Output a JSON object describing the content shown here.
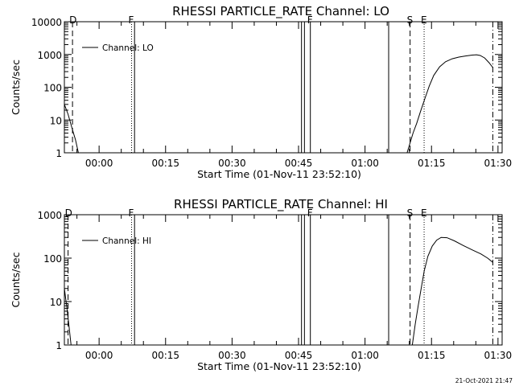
{
  "timestamp": "21-Oct-2021 21:47",
  "chart_data": [
    {
      "type": "line",
      "title": "RHESSI PARTICLE_RATE Channel: LO",
      "xlabel": "Start Time (01-Nov-11 23:52:10)",
      "ylabel": "Counts/sec",
      "y_scale": "log",
      "ylim": [
        1,
        10000
      ],
      "xlim": [
        "23:52:10",
        "01:30:56"
      ],
      "y_ticks": [
        "1",
        "10",
        "100",
        "1000",
        "10000"
      ],
      "x_ticks": [
        "00:00",
        "00:15",
        "00:30",
        "00:45",
        "01:00",
        "01:15",
        "01:30"
      ],
      "legend": [
        "Channel: LO"
      ],
      "legend_position": "top-left",
      "series": [
        {
          "name": "Channel: LO",
          "points": [
            [
              "23:52:10",
              30
            ],
            [
              "23:53:00",
              15
            ],
            [
              "23:54:00",
              5
            ],
            [
              "23:54:40",
              2.5
            ],
            [
              "23:55:20",
              1
            ],
            [
              "01:09:30",
              1
            ],
            [
              "01:10:10",
              2
            ],
            [
              "01:10:50",
              4
            ],
            [
              "01:11:40",
              8
            ],
            [
              "01:12:30",
              18
            ],
            [
              "01:13:30",
              45
            ],
            [
              "01:14:30",
              110
            ],
            [
              "01:15:30",
              230
            ],
            [
              "01:16:50",
              420
            ],
            [
              "01:18:10",
              600
            ],
            [
              "01:19:40",
              740
            ],
            [
              "01:21:10",
              830
            ],
            [
              "01:22:40",
              900
            ],
            [
              "01:24:10",
              960
            ],
            [
              "01:25:10",
              980
            ],
            [
              "01:26:00",
              930
            ],
            [
              "01:27:00",
              780
            ],
            [
              "01:28:00",
              560
            ],
            [
              "01:28:50",
              400
            ]
          ]
        }
      ],
      "markers": [
        {
          "time": "23:54:00",
          "style": "dashed",
          "label": "D"
        },
        {
          "time": "00:07:20",
          "style": "dotted",
          "label": "F"
        },
        {
          "time": "00:08:00",
          "style": "solid",
          "label": ""
        },
        {
          "time": "00:45:40",
          "style": "solid",
          "label": ""
        },
        {
          "time": "00:46:20",
          "style": "solid",
          "label": ""
        },
        {
          "time": "00:47:40",
          "style": "solid",
          "label": "F"
        },
        {
          "time": "01:05:20",
          "style": "solid",
          "label": ""
        },
        {
          "time": "01:10:10",
          "style": "dashed",
          "label": "S"
        },
        {
          "time": "01:13:20",
          "style": "dotted",
          "label": "E"
        },
        {
          "time": "01:28:50",
          "style": "dashdot",
          "label": ""
        }
      ]
    },
    {
      "type": "line",
      "title": "RHESSI PARTICLE_RATE Channel: HI",
      "xlabel": "Start Time (01-Nov-11 23:52:10)",
      "ylabel": "Counts/sec",
      "y_scale": "log",
      "ylim": [
        1,
        1000
      ],
      "xlim": [
        "23:52:10",
        "01:30:56"
      ],
      "y_ticks": [
        "1",
        "10",
        "100",
        "1000"
      ],
      "x_ticks": [
        "00:00",
        "00:15",
        "00:30",
        "00:45",
        "01:00",
        "01:15",
        "01:30"
      ],
      "legend": [
        "Channel: HI"
      ],
      "legend_position": "top-left",
      "series": [
        {
          "name": "Channel: HI",
          "points": [
            [
              "23:52:10",
              20
            ],
            [
              "23:52:40",
              8
            ],
            [
              "23:53:10",
              3
            ],
            [
              "23:53:40",
              1
            ],
            [
              "01:10:40",
              1
            ],
            [
              "01:11:20",
              3
            ],
            [
              "01:12:00",
              8
            ],
            [
              "01:12:40",
              20
            ],
            [
              "01:13:20",
              50
            ],
            [
              "01:14:10",
              110
            ],
            [
              "01:15:10",
              190
            ],
            [
              "01:16:10",
              260
            ],
            [
              "01:17:10",
              300
            ],
            [
              "01:18:30",
              295
            ],
            [
              "01:20:10",
              250
            ],
            [
              "01:22:10",
              195
            ],
            [
              "01:24:10",
              155
            ],
            [
              "01:26:10",
              125
            ],
            [
              "01:27:40",
              100
            ],
            [
              "01:28:50",
              80
            ]
          ]
        }
      ],
      "markers": [
        {
          "time": "23:53:00",
          "style": "dashed",
          "label": "D"
        },
        {
          "time": "00:07:20",
          "style": "dotted",
          "label": "F"
        },
        {
          "time": "00:08:00",
          "style": "solid",
          "label": ""
        },
        {
          "time": "00:45:40",
          "style": "solid",
          "label": ""
        },
        {
          "time": "00:46:20",
          "style": "solid",
          "label": ""
        },
        {
          "time": "00:47:40",
          "style": "solid",
          "label": "F"
        },
        {
          "time": "01:05:20",
          "style": "solid",
          "label": ""
        },
        {
          "time": "01:10:10",
          "style": "dashed",
          "label": "S"
        },
        {
          "time": "01:13:20",
          "style": "dotted",
          "label": "E"
        },
        {
          "time": "01:28:50",
          "style": "dashdot",
          "label": ""
        }
      ]
    }
  ]
}
